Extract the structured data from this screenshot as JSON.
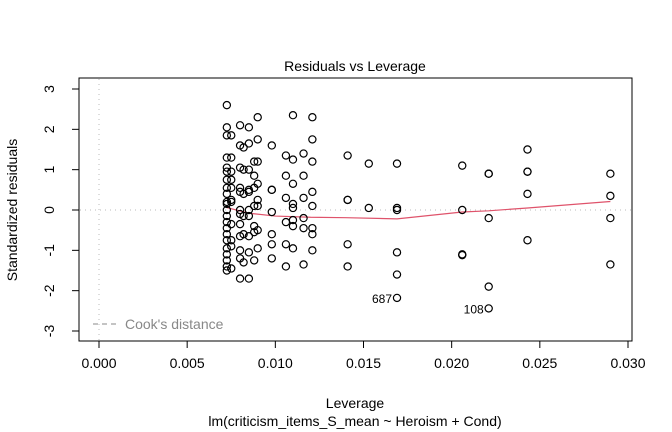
{
  "chart_data": {
    "type": "scatter",
    "title": "Residuals vs Leverage",
    "xlabel": "Leverage",
    "subtitle": "lm(criticism_items_S_mean ~ Heroism + Cond)",
    "ylabel": "Standardized residuals",
    "xlim": [
      -0.0007,
      0.0301
    ],
    "ylim": [
      -3.3,
      3.3
    ],
    "x_ticks": [
      0.0,
      0.005,
      0.01,
      0.015,
      0.02,
      0.025,
      0.03
    ],
    "x_tick_labels": [
      "0.000",
      "0.005",
      "0.010",
      "0.015",
      "0.020",
      "0.025",
      "0.030"
    ],
    "y_ticks": [
      -3,
      -2,
      -1,
      0,
      1,
      2,
      3
    ],
    "y_tick_labels": [
      "-3",
      "-2",
      "-1",
      "0",
      "1",
      "2",
      "3"
    ],
    "grid": false,
    "reference_lines": [
      {
        "orientation": "horizontal",
        "value": 0,
        "style": "dotted",
        "color": "#bbbbbb"
      },
      {
        "orientation": "vertical",
        "value": 0,
        "style": "dotted",
        "color": "#bbbbbb"
      }
    ],
    "legend": {
      "position": "bottom-left",
      "entries": [
        {
          "label": "Cook's distance",
          "style": "dashed",
          "color": "#888888"
        }
      ]
    },
    "smooth_color": "#df536b",
    "point_color": "#000000",
    "smooth_line": {
      "x": [
        0.00725,
        0.0085,
        0.01,
        0.012,
        0.014,
        0.0169,
        0.0206,
        0.0221,
        0.0243,
        0.029
      ],
      "y": [
        0.06,
        -0.08,
        -0.15,
        -0.18,
        -0.19,
        -0.22,
        -0.05,
        -0.02,
        0.05,
        0.21
      ]
    },
    "point_labels": [
      {
        "label": "687",
        "x": 0.0169,
        "y": -2.18
      },
      {
        "label": "108",
        "x": 0.0221,
        "y": -2.44
      }
    ],
    "points": {
      "x": [
        0.00725,
        0.00725,
        0.00725,
        0.00725,
        0.00725,
        0.00725,
        0.00725,
        0.00725,
        0.00725,
        0.00725,
        0.00725,
        0.00725,
        0.00725,
        0.00725,
        0.00725,
        0.00725,
        0.00725,
        0.00725,
        0.00725,
        0.00725,
        0.00725,
        0.00725,
        0.0075,
        0.0075,
        0.0075,
        0.0075,
        0.0075,
        0.0075,
        0.0075,
        0.0075,
        0.0075,
        0.0075,
        0.0075,
        0.008,
        0.008,
        0.008,
        0.008,
        0.008,
        0.008,
        0.008,
        0.008,
        0.008,
        0.008,
        0.008,
        0.008,
        0.0082,
        0.0082,
        0.0082,
        0.0082,
        0.0082,
        0.0082,
        0.0085,
        0.0085,
        0.0085,
        0.0085,
        0.0085,
        0.0085,
        0.0085,
        0.0085,
        0.0085,
        0.0085,
        0.0088,
        0.0088,
        0.0088,
        0.0088,
        0.0088,
        0.0088,
        0.0088,
        0.009,
        0.009,
        0.009,
        0.009,
        0.009,
        0.009,
        0.009,
        0.009,
        0.0098,
        0.0098,
        0.0098,
        0.0098,
        0.0098,
        0.0098,
        0.0098,
        0.0106,
        0.0106,
        0.0106,
        0.0106,
        0.0106,
        0.0106,
        0.011,
        0.011,
        0.011,
        0.011,
        0.011,
        0.011,
        0.011,
        0.011,
        0.0116,
        0.0116,
        0.0116,
        0.0116,
        0.0116,
        0.0116,
        0.0121,
        0.0121,
        0.0121,
        0.0121,
        0.0121,
        0.0121,
        0.0121,
        0.0121,
        0.0141,
        0.0141,
        0.0141,
        0.0141,
        0.0141,
        0.0153,
        0.0153,
        0.0169,
        0.0169,
        0.0169,
        0.0169,
        0.0169,
        0.0169,
        0.0206,
        0.0206,
        0.0206,
        0.0206,
        0.0221,
        0.0221,
        0.0221,
        0.0221,
        0.0221,
        0.0243,
        0.0243,
        0.0243,
        0.0243,
        0.0243,
        0.029,
        0.029,
        0.029,
        0.029
      ],
      "y": [
        2.6,
        2.05,
        1.85,
        1.3,
        1.05,
        0.95,
        0.75,
        0.55,
        0.4,
        0.2,
        0.0,
        -0.15,
        -0.3,
        -0.45,
        -0.6,
        -0.75,
        -0.95,
        -1.1,
        -1.25,
        -1.4,
        -1.5,
        0.15,
        1.85,
        1.3,
        0.95,
        0.75,
        0.55,
        0.25,
        0.2,
        -0.35,
        -0.75,
        -0.9,
        -1.45,
        2.1,
        1.6,
        1.05,
        0.55,
        0.45,
        0.0,
        -0.1,
        -0.35,
        -0.65,
        -1.0,
        -1.2,
        -1.7,
        1.55,
        1.0,
        0.4,
        -0.15,
        -0.6,
        -1.3,
        2.05,
        1.65,
        1.0,
        0.5,
        0.45,
        0.0,
        -0.15,
        -0.65,
        -1.05,
        -1.7,
        1.2,
        0.85,
        0.55,
        0.1,
        -0.4,
        -0.55,
        -1.25,
        2.3,
        1.75,
        1.2,
        0.65,
        0.25,
        0.1,
        -0.5,
        -0.95,
        1.6,
        0.5,
        -0.05,
        -0.6,
        -1.2,
        -0.85,
        0.5,
        1.35,
        0.3,
        -0.3,
        -0.85,
        -1.4,
        0.85,
        2.35,
        1.25,
        0.65,
        0.15,
        -0.4,
        -0.95,
        -0.25,
        0.05,
        1.4,
        0.85,
        0.3,
        -0.2,
        -0.45,
        -1.35,
        2.3,
        1.75,
        1.2,
        0.45,
        0.1,
        -0.45,
        -1.0,
        -0.6,
        1.35,
        0.25,
        -0.85,
        -1.4,
        0.25,
        1.15,
        0.05,
        1.15,
        0.05,
        -1.05,
        -1.6,
        -2.18,
        0.0,
        1.1,
        0.0,
        -1.1,
        -1.12,
        0.9,
        -0.2,
        -1.9,
        -2.44,
        0.9,
        1.5,
        0.95,
        0.4,
        -0.75,
        0.95,
        0.9,
        0.35,
        -0.2,
        -1.35
      ]
    }
  }
}
